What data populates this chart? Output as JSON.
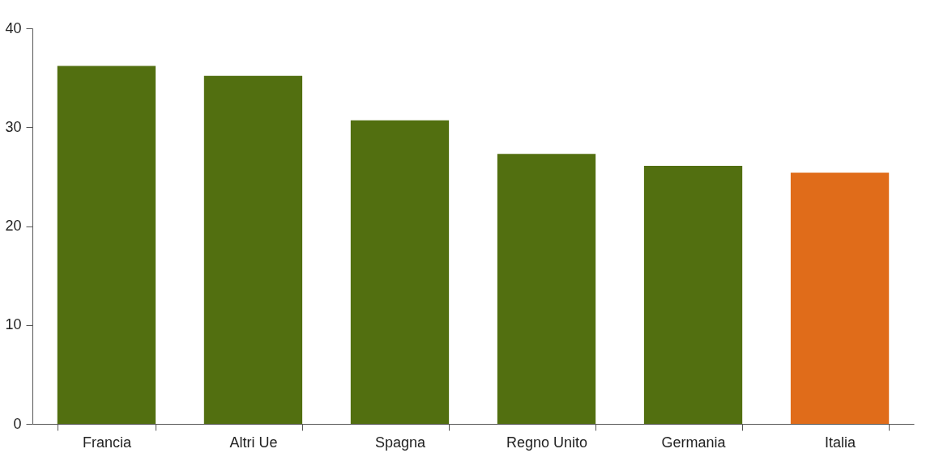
{
  "chart_data": {
    "type": "bar",
    "categories": [
      "Francia",
      "Altri Ue",
      "Spagna",
      "Regno Unito",
      "Germania",
      "Italia"
    ],
    "values": [
      36.2,
      35.2,
      30.7,
      27.3,
      26.1,
      25.4
    ],
    "colors": [
      "#526f10",
      "#526f10",
      "#526f10",
      "#526f10",
      "#526f10",
      "#e06c1a"
    ],
    "ylim": [
      0,
      40
    ],
    "yticks": [
      0,
      10,
      20,
      30,
      40
    ],
    "grid": false
  }
}
